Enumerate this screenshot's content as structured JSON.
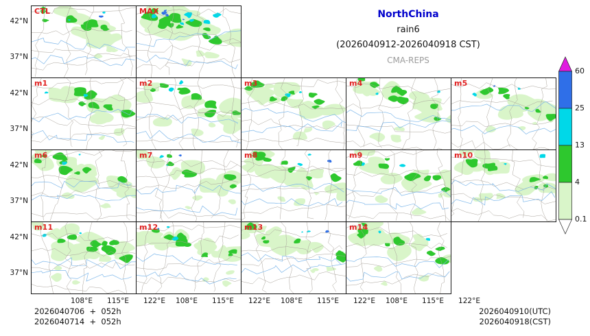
{
  "header": {
    "region": "NorthChina",
    "variable": "rain6",
    "period": "(2026040912-2026040918 CST)",
    "model": "CMA-REPS",
    "region_color": "#0000cc",
    "model_color": "#9b9b9b"
  },
  "panels": [
    {
      "label": "CTL"
    },
    {
      "label": "MAX"
    },
    {
      "label": "m1"
    },
    {
      "label": "m2"
    },
    {
      "label": "m3"
    },
    {
      "label": "m4"
    },
    {
      "label": "m5"
    },
    {
      "label": "m6"
    },
    {
      "label": "m7"
    },
    {
      "label": "m8"
    },
    {
      "label": "m9"
    },
    {
      "label": "m10"
    },
    {
      "label": "m11"
    },
    {
      "label": "m12"
    },
    {
      "label": "m13"
    },
    {
      "label": "m14"
    }
  ],
  "axes": {
    "lat": [
      "42°N",
      "37°N"
    ],
    "lon": [
      "108°E",
      "115°E",
      "122°E"
    ]
  },
  "colorbar": {
    "levels": [
      "60",
      "25",
      "13",
      "4",
      "0.1"
    ],
    "segment_colors": [
      "#2f6fe8",
      "#00d8e8",
      "#2ec82e",
      "#d9f5c9"
    ],
    "top_arrow_color": "#e01ce0",
    "bottom_arrow_color": "#ffffff"
  },
  "footer": {
    "left": [
      "2026040706  +  052h",
      "2026040714  +  052h"
    ],
    "right": [
      "2026040910(UTC)",
      "2026040918(CST)"
    ]
  },
  "styles": {
    "panel_label_color": "#e02020"
  }
}
